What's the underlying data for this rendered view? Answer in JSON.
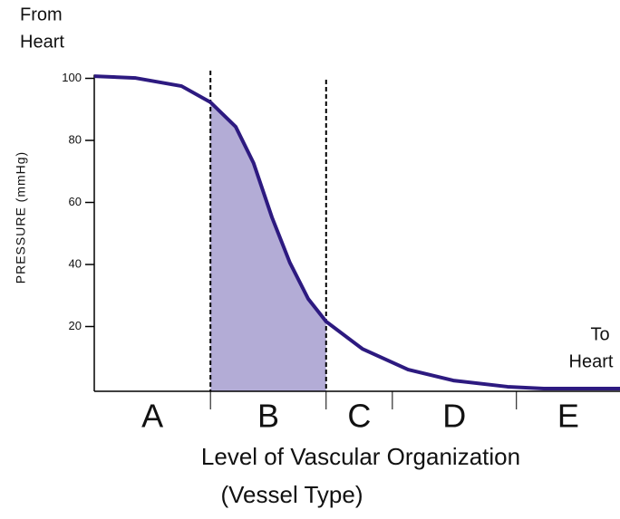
{
  "chart_data": {
    "type": "line",
    "start_label": [
      "From",
      "Heart"
    ],
    "end_label": [
      "To",
      "Heart"
    ],
    "y_label": "PRESSURE  (mmHg)",
    "x_label": [
      "Level of Vascular Organization",
      "(Vessel Type)"
    ],
    "categories": [
      "A",
      "B",
      "C",
      "D",
      "E"
    ],
    "xlim": [
      0,
      100
    ],
    "xticks": [
      22.1,
      44.1,
      56.7,
      80.3
    ],
    "ylim": [
      0,
      100
    ],
    "yticks": [
      20,
      40,
      60,
      80,
      100
    ],
    "highlight": {
      "from": 22.1,
      "to": 44.1,
      "color": "#b3acd6"
    },
    "series": [
      {
        "name": null,
        "color": "#2d1a80",
        "x": [
          0,
          7.9,
          16.6,
          22.1,
          26.9,
          30.3,
          33.8,
          37.2,
          40.7,
          44.1,
          51,
          59.7,
          68.3,
          78.6,
          85.5,
          100
        ],
        "values": [
          100.7,
          100.1,
          97.5,
          92.3,
          84.4,
          72.7,
          55.2,
          40.6,
          28.9,
          21.6,
          12.8,
          6.1,
          2.6,
          0.6,
          0,
          0
        ]
      }
    ]
  }
}
